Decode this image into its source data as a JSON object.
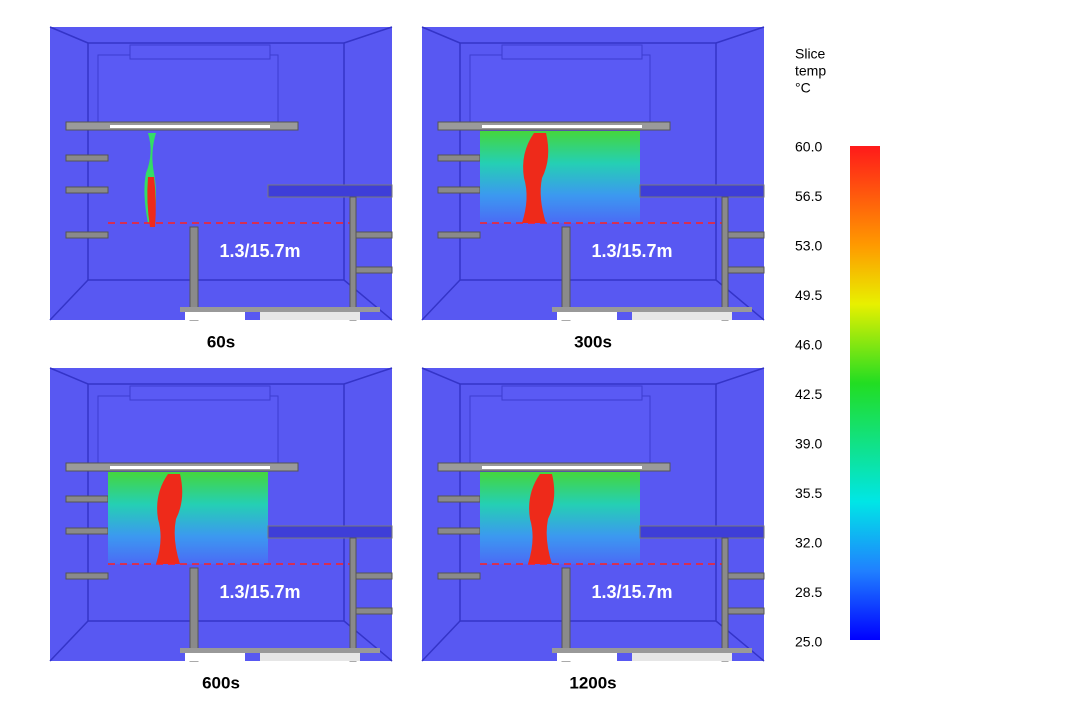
{
  "panels": [
    {
      "label": "1.3/15.7m",
      "time": "60s"
    },
    {
      "label": "1.3/15.7m",
      "time": "300s"
    },
    {
      "label": "1.3/15.7m",
      "time": "600s"
    },
    {
      "label": "1.3/15.7m",
      "time": "1200s"
    }
  ],
  "colorbar": {
    "title": [
      "Slice",
      "temp",
      "°C"
    ],
    "ticks": [
      "60.0",
      "56.5",
      "53.0",
      "49.5",
      "46.0",
      "42.5",
      "39.0",
      "35.5",
      "32.0",
      "28.5",
      "25.0"
    ]
  }
}
